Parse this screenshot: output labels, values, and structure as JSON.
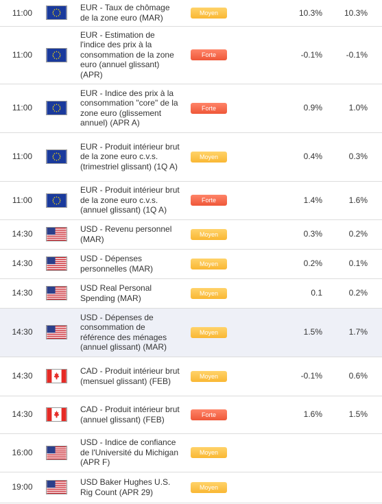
{
  "table": {
    "rows": [
      {
        "time": "11:00",
        "event": "EUR - Taux de chômage de la zone euro (MAR)",
        "importance": "Moyen",
        "actual": "10.3%",
        "forecast": "10.3%"
      },
      {
        "time": "11:00",
        "event": "EUR - Estimation de l'indice des prix à la consommation de la zone euro (annuel glissant) (APR)",
        "importance": "Forte",
        "actual": "-0.1%",
        "forecast": "-0.1%"
      },
      {
        "time": "11:00",
        "event": "EUR - Indice des prix à la consommation \"core\" de la zone euro (glissement annuel) (APR A)",
        "importance": "Forte",
        "actual": "0.9%",
        "forecast": "1.0%"
      },
      {
        "time": "11:00",
        "event": "EUR - Produit intérieur brut de la zone euro c.v.s. (trimestriel glissant) (1Q A)",
        "importance": "Moyen",
        "actual": "0.4%",
        "forecast": "0.3%"
      },
      {
        "time": "11:00",
        "event": "EUR - Produit intérieur brut de la zone euro c.v.s. (annuel glissant) (1Q A)",
        "importance": "Forte",
        "actual": "1.4%",
        "forecast": "1.6%"
      },
      {
        "time": "14:30",
        "event": "USD - Revenu personnel (MAR)",
        "importance": "Moyen",
        "actual": "0.3%",
        "forecast": "0.2%"
      },
      {
        "time": "14:30",
        "event": "USD - Dépenses personnelles (MAR)",
        "importance": "Moyen",
        "actual": "0.2%",
        "forecast": "0.1%"
      },
      {
        "time": "14:30",
        "event": "USD Real Personal Spending (MAR)",
        "importance": "Moyen",
        "actual": "0.1",
        "forecast": "0.2%"
      },
      {
        "time": "14:30",
        "event": "USD - Dépenses de consommation de référence des ménages (annuel glissant) (MAR)",
        "importance": "Moyen",
        "actual": "1.5%",
        "forecast": "1.7%"
      },
      {
        "time": "14:30",
        "event": "CAD - Produit intérieur brut (mensuel glissant) (FEB)",
        "importance": "Moyen",
        "actual": "-0.1%",
        "forecast": "0.6%"
      },
      {
        "time": "14:30",
        "event": "CAD - Produit intérieur brut (annuel glissant) (FEB)",
        "importance": "Forte",
        "actual": "1.6%",
        "forecast": "1.5%"
      },
      {
        "time": "16:00",
        "event": "USD - Indice de confiance de l'Université du Michigan (APR F)",
        "importance": "Moyen"
      },
      {
        "time": "19:00",
        "event": "USD Baker Hughes U.S. Rig Count (APR 29)",
        "importance": "Moyen"
      }
    ]
  }
}
